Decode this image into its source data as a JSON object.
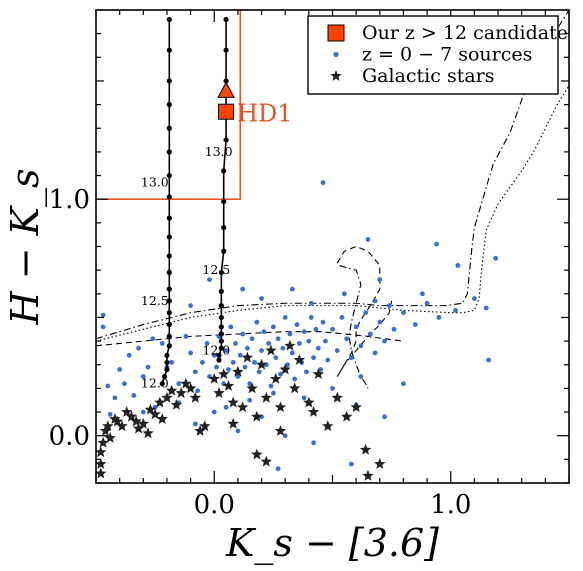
{
  "chart_data": {
    "type": "scatter",
    "xlabel": "K_s − [3.6]",
    "ylabel": "H − K_s",
    "xlim": [
      -0.5,
      1.5
    ],
    "ylim": [
      -0.2,
      1.8
    ],
    "x_ticks": [
      0.0,
      1.0
    ],
    "x_tick_labels": [
      "0.0",
      "1.0"
    ],
    "y_ticks": [
      0.0,
      1.0
    ],
    "y_tick_labels": [
      "0.0",
      "1.0"
    ],
    "legend": {
      "placement": "top-right",
      "entries": [
        {
          "marker": "square",
          "color": "#ff4500",
          "label": "Our z > 12 candidate"
        },
        {
          "marker": "dot",
          "color": "#3b6fd8",
          "label": "z = 0 − 7 sources"
        },
        {
          "marker": "star",
          "color": "#222222",
          "label": "Galactic stars"
        }
      ]
    },
    "selection_box": {
      "color": "#e8541c",
      "x_max": 0.11,
      "y_min": 1.0
    },
    "candidate": {
      "label": "HD1",
      "color": "#ff4500",
      "square": {
        "x": 0.05,
        "y": 1.37
      },
      "triangle": {
        "x": 0.05,
        "y": 1.46
      }
    },
    "tracks": [
      {
        "name": "track-left",
        "x": [
          -0.19,
          -0.19,
          -0.19,
          -0.19,
          -0.19,
          -0.19,
          -0.19,
          -0.19,
          -0.19,
          -0.19,
          -0.19,
          -0.19,
          -0.19,
          -0.19,
          -0.19,
          -0.19,
          -0.19,
          -0.19,
          -0.2,
          -0.2,
          -0.2,
          -0.21,
          -0.22
        ],
        "y": [
          1.76,
          1.63,
          1.5,
          1.4,
          1.3,
          1.2,
          1.1,
          1.01,
          0.92,
          0.84,
          0.76,
          0.69,
          0.62,
          0.57,
          0.52,
          0.47,
          0.42,
          0.38,
          0.34,
          0.31,
          0.28,
          0.25,
          0.22
        ]
      },
      {
        "name": "track-right",
        "x": [
          0.05,
          0.05,
          0.05,
          0.05,
          0.05,
          0.04,
          0.04,
          0.04,
          0.04,
          0.03,
          0.03,
          0.03,
          0.03,
          0.03,
          0.03,
          0.03,
          0.03,
          0.02,
          0.02
        ],
        "y": [
          1.76,
          1.63,
          1.5,
          1.37,
          1.25,
          1.12,
          0.99,
          0.88,
          0.78,
          0.69,
          0.61,
          0.55,
          0.5,
          0.46,
          0.43,
          0.4,
          0.37,
          0.34,
          0.32
        ]
      }
    ],
    "track_labels": [
      {
        "text": "13.0",
        "x": -0.31,
        "y": 1.07
      },
      {
        "text": "12.5",
        "x": -0.31,
        "y": 0.57
      },
      {
        "text": "12.0",
        "x": -0.31,
        "y": 0.22
      },
      {
        "text": "13.0",
        "x": -0.04,
        "y": 1.2
      },
      {
        "text": "12.5",
        "x": -0.05,
        "y": 0.7
      },
      {
        "text": "12.0",
        "x": -0.05,
        "y": 0.36
      }
    ],
    "model_curves": [
      {
        "style": "dotted",
        "x": [
          -0.5,
          -0.3,
          -0.1,
          0.1,
          0.3,
          0.5,
          0.6,
          0.7,
          0.8,
          1.0,
          1.05,
          1.1,
          1.12,
          1.13,
          1.15,
          1.2,
          1.25,
          1.3,
          1.35,
          1.4,
          1.45,
          1.5
        ],
        "y": [
          0.4,
          0.45,
          0.5,
          0.53,
          0.55,
          0.55,
          0.55,
          0.54,
          0.53,
          0.52,
          0.52,
          0.53,
          0.58,
          0.7,
          0.87,
          0.98,
          1.05,
          1.12,
          1.2,
          1.3,
          1.4,
          1.48
        ]
      },
      {
        "style": "dashdot",
        "x": [
          -0.5,
          -0.3,
          -0.1,
          0.1,
          0.3,
          0.5,
          0.6,
          0.7,
          0.75,
          0.85,
          0.98,
          1.05,
          1.07,
          1.08,
          1.09,
          1.1,
          1.15,
          1.18,
          1.25,
          1.3,
          1.35,
          1.4,
          1.45,
          1.5
        ],
        "y": [
          0.41,
          0.47,
          0.52,
          0.55,
          0.56,
          0.56,
          0.56,
          0.55,
          0.55,
          0.55,
          0.55,
          0.56,
          0.6,
          0.7,
          0.8,
          0.88,
          1.05,
          1.15,
          1.28,
          1.42,
          1.55,
          1.64,
          1.72,
          1.8
        ]
      },
      {
        "style": "dashed",
        "x": [
          -0.5,
          -0.3,
          -0.1,
          0.1,
          0.3,
          0.45,
          0.55,
          0.65,
          0.72,
          0.8
        ],
        "y": [
          0.38,
          0.4,
          0.42,
          0.43,
          0.44,
          0.44,
          0.43,
          0.42,
          0.41,
          0.4
        ]
      },
      {
        "style": "dashed",
        "x": [
          0.52,
          0.55,
          0.6,
          0.65,
          0.7,
          0.7,
          0.66,
          0.62,
          0.6,
          0.6,
          0.58,
          0.55,
          0.52,
          0.55,
          0.6,
          0.65,
          0.7,
          0.74,
          0.75
        ],
        "y": [
          0.73,
          0.78,
          0.8,
          0.78,
          0.72,
          0.62,
          0.55,
          0.49,
          0.45,
          0.4,
          0.35,
          0.3,
          0.25,
          0.3,
          0.36,
          0.42,
          0.47,
          0.52,
          0.57
        ]
      },
      {
        "style": "dashdot",
        "x": [
          0.53,
          0.56,
          0.6,
          0.62,
          0.6,
          0.58,
          0.57,
          0.58,
          0.6,
          0.62,
          0.64,
          0.65
        ],
        "y": [
          0.72,
          0.71,
          0.7,
          0.64,
          0.56,
          0.48,
          0.42,
          0.36,
          0.3,
          0.25,
          0.22,
          0.2
        ]
      }
    ],
    "series": [
      {
        "name": "z = 0 − 7 sources",
        "marker": "dot",
        "color": "#3b6fd8",
        "points": [
          [
            -0.47,
            0.51
          ],
          [
            -0.47,
            0.46
          ],
          [
            -0.45,
            0.21
          ],
          [
            -0.44,
            0.09
          ],
          [
            -0.42,
            0.16
          ],
          [
            -0.4,
            0.28
          ],
          [
            -0.38,
            0.22
          ],
          [
            -0.36,
            0.34
          ],
          [
            -0.34,
            0.17
          ],
          [
            -0.32,
            0.37
          ],
          [
            -0.3,
            0.25
          ],
          [
            -0.28,
            0.29
          ],
          [
            -0.26,
            0.41
          ],
          [
            -0.25,
            0.12
          ],
          [
            -0.22,
            0.39
          ],
          [
            -0.2,
            0.29
          ],
          [
            -0.18,
            0.31
          ],
          [
            -0.15,
            0.22
          ],
          [
            -0.12,
            0.42
          ],
          [
            -0.1,
            0.35
          ],
          [
            -0.08,
            0.27
          ],
          [
            -0.07,
            0.19
          ],
          [
            -0.05,
            0.31
          ],
          [
            -0.03,
            0.39
          ],
          [
            -0.02,
            0.25
          ],
          [
            0.0,
            0.34
          ],
          [
            0.01,
            0.29
          ],
          [
            0.02,
            0.42
          ],
          [
            0.04,
            0.22
          ],
          [
            0.05,
            0.36
          ],
          [
            0.06,
            0.28
          ],
          [
            0.07,
            0.46
          ],
          [
            0.08,
            0.31
          ],
          [
            0.09,
            0.39
          ],
          [
            0.1,
            0.25
          ],
          [
            0.11,
            0.34
          ],
          [
            0.12,
            0.43
          ],
          [
            0.13,
            0.29
          ],
          [
            0.14,
            0.37
          ],
          [
            0.15,
            0.22
          ],
          [
            0.16,
            0.41
          ],
          [
            0.17,
            0.31
          ],
          [
            0.18,
            0.48
          ],
          [
            0.19,
            0.27
          ],
          [
            0.2,
            0.36
          ],
          [
            0.21,
            0.44
          ],
          [
            0.22,
            0.3
          ],
          [
            0.23,
            0.39
          ],
          [
            0.24,
            0.21
          ],
          [
            0.25,
            0.46
          ],
          [
            0.26,
            0.33
          ],
          [
            0.27,
            0.41
          ],
          [
            0.28,
            0.26
          ],
          [
            0.29,
            0.37
          ],
          [
            0.3,
            0.5
          ],
          [
            0.31,
            0.3
          ],
          [
            0.32,
            0.43
          ],
          [
            0.33,
            0.35
          ],
          [
            0.34,
            0.24
          ],
          [
            0.35,
            0.47
          ],
          [
            0.36,
            0.39
          ],
          [
            0.37,
            0.31
          ],
          [
            0.38,
            0.44
          ],
          [
            0.39,
            0.27
          ],
          [
            0.4,
            0.4
          ],
          [
            0.41,
            0.5
          ],
          [
            0.42,
            0.33
          ],
          [
            0.43,
            0.45
          ],
          [
            0.44,
            0.37
          ],
          [
            0.45,
            0.28
          ],
          [
            0.46,
            0.48
          ],
          [
            0.47,
            0.4
          ],
          [
            0.48,
            0.32
          ],
          [
            0.5,
            0.45
          ],
          [
            0.52,
            0.36
          ],
          [
            0.54,
            0.5
          ],
          [
            0.56,
            0.41
          ],
          [
            0.58,
            0.33
          ],
          [
            0.6,
            0.46
          ],
          [
            0.62,
            0.38
          ],
          [
            0.64,
            0.52
          ],
          [
            0.66,
            0.43
          ],
          [
            0.68,
            0.35
          ],
          [
            0.7,
            0.48
          ],
          [
            0.72,
            0.4
          ],
          [
            0.74,
            0.55
          ],
          [
            0.76,
            0.45
          ],
          [
            0.8,
            0.52
          ],
          [
            0.85,
            0.47
          ],
          [
            0.9,
            0.56
          ],
          [
            0.95,
            0.5
          ],
          [
            1.02,
            0.53
          ],
          [
            1.1,
            0.58
          ],
          [
            1.15,
            0.54
          ],
          [
            0.46,
            1.07
          ],
          [
            0.65,
            0.83
          ],
          [
            0.94,
            0.81
          ],
          [
            1.03,
            0.72
          ],
          [
            1.19,
            0.75
          ],
          [
            1.16,
            0.32
          ],
          [
            -0.08,
            0.05
          ],
          [
            0.0,
            0.1
          ],
          [
            0.1,
            0.02
          ],
          [
            0.2,
            0.08
          ],
          [
            0.3,
            0.0
          ],
          [
            0.42,
            -0.03
          ],
          [
            0.58,
            -0.12
          ],
          [
            0.27,
            -0.14
          ],
          [
            0.6,
            0.13
          ],
          [
            0.72,
            0.08
          ],
          [
            -0.3,
            0.1
          ],
          [
            0.15,
            0.15
          ],
          [
            0.05,
            0.12
          ],
          [
            -0.15,
            0.14
          ],
          [
            0.38,
            0.16
          ],
          [
            0.5,
            0.2
          ],
          [
            0.25,
            0.18
          ],
          [
            0.62,
            0.25
          ],
          [
            0.8,
            0.22
          ],
          [
            0.68,
            0.57
          ],
          [
            0.55,
            0.6
          ],
          [
            0.33,
            0.62
          ],
          [
            -0.02,
            0.66
          ],
          [
            0.2,
            0.58
          ],
          [
            -0.1,
            0.55
          ],
          [
            0.41,
            0.56
          ],
          [
            0.12,
            0.62
          ],
          [
            0.88,
            0.6
          ],
          [
            0.7,
            0.66
          ]
        ]
      },
      {
        "name": "Galactic stars",
        "marker": "star",
        "color": "#222222",
        "points": [
          [
            -0.48,
            -0.07
          ],
          [
            -0.48,
            -0.12
          ],
          [
            -0.48,
            -0.16
          ],
          [
            -0.47,
            -0.03
          ],
          [
            -0.46,
            0.02
          ],
          [
            -0.45,
            0.04
          ],
          [
            -0.44,
            -0.01
          ],
          [
            -0.42,
            0.07
          ],
          [
            -0.41,
            0.06
          ],
          [
            -0.39,
            0.04
          ],
          [
            -0.37,
            0.1
          ],
          [
            -0.35,
            0.08
          ],
          [
            -0.33,
            0.06
          ],
          [
            -0.32,
            0.03
          ],
          [
            -0.3,
            0.05
          ],
          [
            -0.28,
            0.01
          ],
          [
            -0.27,
            0.11
          ],
          [
            -0.25,
            0.09
          ],
          [
            -0.23,
            0.14
          ],
          [
            -0.22,
            0.07
          ],
          [
            -0.2,
            0.16
          ],
          [
            -0.18,
            0.19
          ],
          [
            -0.16,
            0.13
          ],
          [
            -0.14,
            0.18
          ],
          [
            -0.12,
            0.22
          ],
          [
            -0.1,
            0.2
          ],
          [
            -0.08,
            0.16
          ],
          [
            -0.06,
            0.02
          ],
          [
            -0.04,
            0.04
          ],
          [
            0.0,
            0.24
          ],
          [
            0.02,
            0.18
          ],
          [
            0.04,
            0.26
          ],
          [
            0.06,
            0.21
          ],
          [
            0.08,
            0.14
          ],
          [
            0.1,
            0.27
          ],
          [
            0.12,
            0.12
          ],
          [
            0.14,
            0.33
          ],
          [
            0.16,
            0.2
          ],
          [
            0.18,
            0.08
          ],
          [
            0.2,
            0.3
          ],
          [
            0.22,
            0.16
          ],
          [
            0.24,
            0.36
          ],
          [
            0.26,
            0.24
          ],
          [
            0.28,
            0.12
          ],
          [
            0.3,
            0.28
          ],
          [
            0.32,
            0.38
          ],
          [
            0.34,
            0.2
          ],
          [
            0.36,
            0.32
          ],
          [
            0.4,
            0.14
          ],
          [
            0.44,
            0.26
          ],
          [
            0.48,
            0.04
          ],
          [
            0.52,
            0.16
          ],
          [
            0.56,
            0.08
          ],
          [
            0.6,
            0.12
          ],
          [
            0.64,
            -0.06
          ],
          [
            0.7,
            -0.12
          ],
          [
            0.18,
            -0.08
          ],
          [
            0.22,
            -0.11
          ],
          [
            0.28,
            0.02
          ],
          [
            0.08,
            0.05
          ],
          [
            0.65,
            -0.17
          ],
          [
            0.42,
            0.1
          ]
        ]
      }
    ]
  }
}
